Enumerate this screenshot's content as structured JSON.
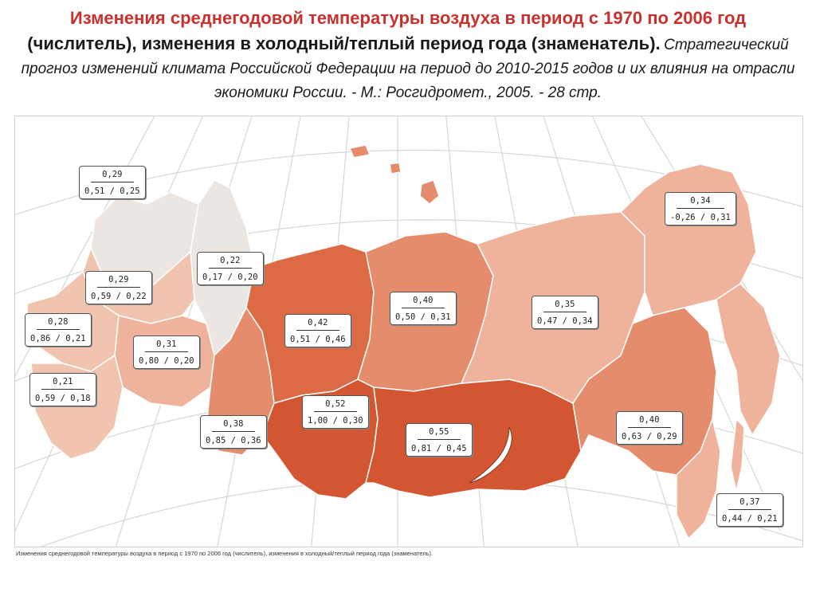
{
  "header": {
    "title_line1": "Изменения среднегодовой температуры воздуха в период с 1970 по 2006 год",
    "title_line2": "(числитель), изменения в холодный/теплый период года (знаменатель).",
    "source": "Стратегический прогноз изменений климата Российской Федерации на период до 2010-2015 годов и их влияния на отрасли экономики России. - М.: Росгидромет., 2005. - 28 стр."
  },
  "caption": "Изменения среднегодовой температуры воздуха в период с 1970 по 2006 год (числитель), изменения в холодный/теплый период года (знаменатель).",
  "colors": {
    "title_red": "#c8312d",
    "region_pale": "#ece6e3",
    "region_light": "#f0c4ae",
    "region_lightmid": "#eeb39a",
    "region_mid": "#e48c6c",
    "region_strong": "#db6a45",
    "region_darkest": "#d45532"
  },
  "labels": [
    {
      "id": "nw-coast",
      "numerator": "0,29",
      "denominator": "0,51 / 0,25"
    },
    {
      "id": "north-west",
      "numerator": "0,22",
      "denominator": "0,17 / 0,20"
    },
    {
      "id": "center-north",
      "numerator": "0,29",
      "denominator": "0,59 / 0,22"
    },
    {
      "id": "west",
      "numerator": "0,28",
      "denominator": "0,86 / 0,21"
    },
    {
      "id": "center",
      "numerator": "0,31",
      "denominator": "0,80 / 0,20"
    },
    {
      "id": "south",
      "numerator": "0,21",
      "denominator": "0,59 / 0,18"
    },
    {
      "id": "volga-ural",
      "numerator": "0,38",
      "denominator": "0,85 / 0,36"
    },
    {
      "id": "ural-north",
      "numerator": "0,42",
      "denominator": "0,51 / 0,46"
    },
    {
      "id": "west-siberia",
      "numerator": "0,52",
      "denominator": "1,00 / 0,30"
    },
    {
      "id": "krasnoyarsk-north",
      "numerator": "0,40",
      "denominator": "0,50 / 0,31"
    },
    {
      "id": "east-siberia-south",
      "numerator": "0,55",
      "denominator": "0,81 / 0,45"
    },
    {
      "id": "yakutia",
      "numerator": "0,35",
      "denominator": "0,47 / 0,34"
    },
    {
      "id": "chukotka",
      "numerator": "0,34",
      "denominator": "-0,26 / 0,31"
    },
    {
      "id": "amur",
      "numerator": "0,40",
      "denominator": "0,63 / 0,29"
    },
    {
      "id": "primorye",
      "numerator": "0,37",
      "denominator": "0,44 / 0,21"
    }
  ]
}
